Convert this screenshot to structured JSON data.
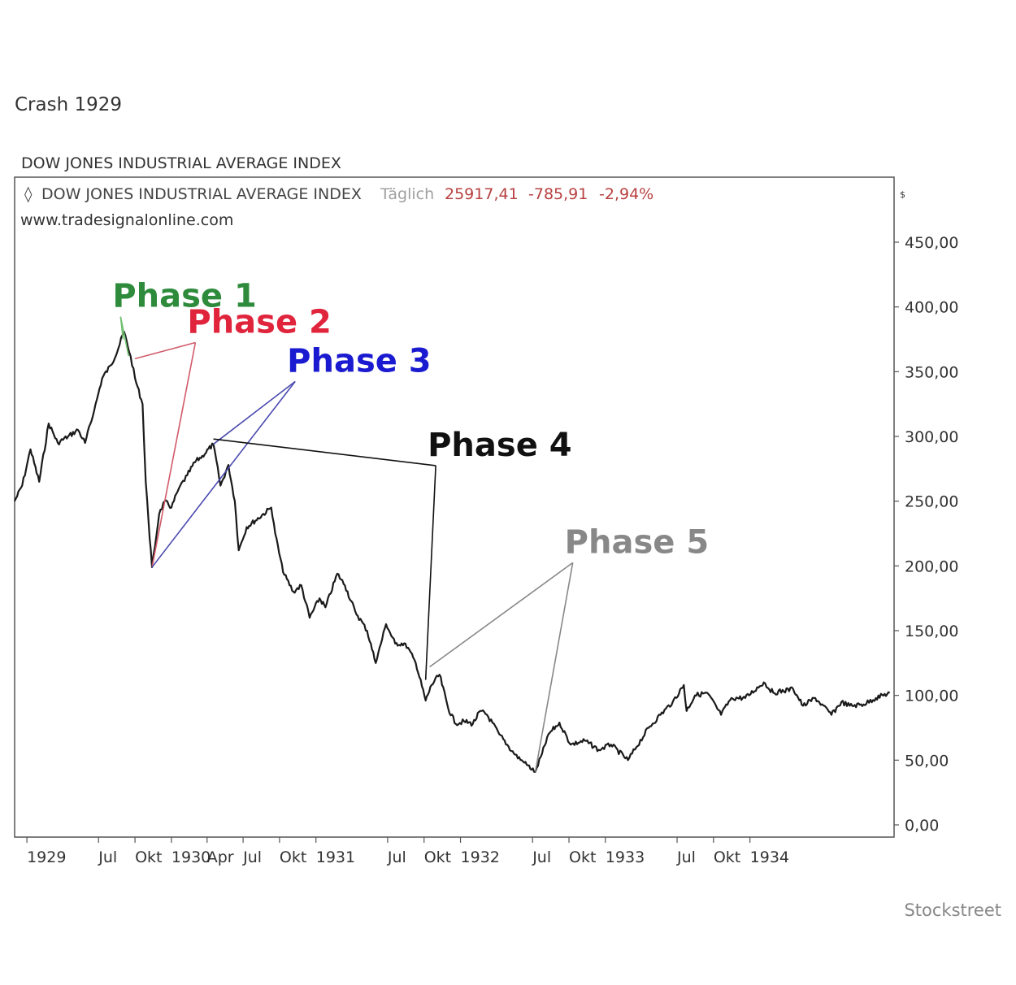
{
  "page": {
    "title": "Crash 1929",
    "credit": "Stockstreet"
  },
  "chart_data": {
    "type": "line",
    "chart_title": "DOW JONES INDUSTRIAL AVERAGE INDEX",
    "legend": {
      "series_name": "DOW JONES INDUSTRIAL AVERAGE INDEX",
      "frequency": "Täglich",
      "last": "25917,41",
      "change": "-785,91",
      "change_pct": "-2,94%"
    },
    "source": "www.tradesignalonline.com",
    "unit_label": "$",
    "ylim": [
      0,
      450
    ],
    "y_ticks": [
      {
        "value": 450,
        "label": "450,00"
      },
      {
        "value": 400,
        "label": "400,00"
      },
      {
        "value": 350,
        "label": "350,00"
      },
      {
        "value": 300,
        "label": "300,00"
      },
      {
        "value": 250,
        "label": "250,00"
      },
      {
        "value": 200,
        "label": "200,00"
      },
      {
        "value": 150,
        "label": "150,00"
      },
      {
        "value": 100,
        "label": "100,00"
      },
      {
        "value": 50,
        "label": "50,00"
      },
      {
        "value": 0,
        "label": "0,00"
      }
    ],
    "x_range": [
      "1928-12-01",
      "1934-12-31"
    ],
    "x_ticks": [
      {
        "date": "1929-01-01",
        "label": "1929"
      },
      {
        "date": "1929-07-01",
        "label": "Jul"
      },
      {
        "date": "1929-10-01",
        "label": "Okt"
      },
      {
        "date": "1930-01-01",
        "label": "1930"
      },
      {
        "date": "1930-04-01",
        "label": "Apr"
      },
      {
        "date": "1930-07-01",
        "label": "Jul"
      },
      {
        "date": "1930-10-01",
        "label": "Okt"
      },
      {
        "date": "1931-01-01",
        "label": "1931"
      },
      {
        "date": "1931-07-01",
        "label": "Jul"
      },
      {
        "date": "1931-10-01",
        "label": "Okt"
      },
      {
        "date": "1932-01-01",
        "label": "1932"
      },
      {
        "date": "1932-07-01",
        "label": "Jul"
      },
      {
        "date": "1932-10-01",
        "label": "Okt"
      },
      {
        "date": "1933-01-01",
        "label": "1933"
      },
      {
        "date": "1933-07-01",
        "label": "Jul"
      },
      {
        "date": "1933-10-01",
        "label": "Okt"
      },
      {
        "date": "1934-01-01",
        "label": "1934"
      }
    ],
    "series": [
      {
        "color": "#1a1a1a",
        "points": [
          [
            "1928-12-01",
            250
          ],
          [
            "1928-12-20",
            262
          ],
          [
            "1929-01-10",
            290
          ],
          [
            "1929-02-01",
            265
          ],
          [
            "1929-02-25",
            310
          ],
          [
            "1929-03-20",
            295
          ],
          [
            "1929-04-15",
            300
          ],
          [
            "1929-05-10",
            305
          ],
          [
            "1929-05-28",
            295
          ],
          [
            "1929-06-20",
            320
          ],
          [
            "1929-07-10",
            345
          ],
          [
            "1929-08-01",
            355
          ],
          [
            "1929-08-20",
            368
          ],
          [
            "1929-09-03",
            381
          ],
          [
            "1929-09-20",
            362
          ],
          [
            "1929-10-01",
            345
          ],
          [
            "1929-10-20",
            325
          ],
          [
            "1929-10-28",
            265
          ],
          [
            "1929-11-04",
            235
          ],
          [
            "1929-11-13",
            199
          ],
          [
            "1929-12-01",
            240
          ],
          [
            "1929-12-15",
            250
          ],
          [
            "1930-01-01",
            245
          ],
          [
            "1930-01-20",
            260
          ],
          [
            "1930-02-10",
            270
          ],
          [
            "1930-03-01",
            280
          ],
          [
            "1930-03-20",
            285
          ],
          [
            "1930-04-17",
            294
          ],
          [
            "1930-05-05",
            262
          ],
          [
            "1930-05-25",
            278
          ],
          [
            "1930-06-10",
            250
          ],
          [
            "1930-06-20",
            212
          ],
          [
            "1930-07-10",
            230
          ],
          [
            "1930-08-01",
            235
          ],
          [
            "1930-09-10",
            245
          ],
          [
            "1930-09-20",
            225
          ],
          [
            "1930-10-10",
            195
          ],
          [
            "1930-11-05",
            180
          ],
          [
            "1930-11-25",
            185
          ],
          [
            "1930-12-16",
            160
          ],
          [
            "1931-01-10",
            175
          ],
          [
            "1931-01-25",
            168
          ],
          [
            "1931-02-24",
            194
          ],
          [
            "1931-03-15",
            185
          ],
          [
            "1931-04-10",
            165
          ],
          [
            "1931-05-10",
            150
          ],
          [
            "1931-06-01",
            125
          ],
          [
            "1931-06-27",
            155
          ],
          [
            "1931-07-20",
            140
          ],
          [
            "1931-08-15",
            140
          ],
          [
            "1931-09-10",
            125
          ],
          [
            "1931-10-05",
            96
          ],
          [
            "1931-10-20",
            108
          ],
          [
            "1931-11-09",
            116
          ],
          [
            "1931-12-01",
            90
          ],
          [
            "1931-12-20",
            78
          ],
          [
            "1932-01-10",
            80
          ],
          [
            "1932-02-01",
            78
          ],
          [
            "1932-02-20",
            88
          ],
          [
            "1932-03-08",
            85
          ],
          [
            "1932-04-08",
            70
          ],
          [
            "1932-05-15",
            55
          ],
          [
            "1932-06-10",
            48
          ],
          [
            "1932-07-08",
            41
          ],
          [
            "1932-07-25",
            55
          ],
          [
            "1932-08-10",
            70
          ],
          [
            "1932-09-07",
            79
          ],
          [
            "1932-10-05",
            62
          ],
          [
            "1932-11-10",
            65
          ],
          [
            "1932-12-15",
            58
          ],
          [
            "1933-01-15",
            62
          ],
          [
            "1933-02-27",
            50
          ],
          [
            "1933-03-20",
            60
          ],
          [
            "1933-04-20",
            75
          ],
          [
            "1933-05-20",
            85
          ],
          [
            "1933-06-20",
            95
          ],
          [
            "1933-07-18",
            108
          ],
          [
            "1933-07-25",
            88
          ],
          [
            "1933-08-15",
            100
          ],
          [
            "1933-09-15",
            102
          ],
          [
            "1933-10-20",
            85
          ],
          [
            "1933-11-15",
            98
          ],
          [
            "1933-12-20",
            98
          ],
          [
            "1934-02-05",
            110
          ],
          [
            "1934-03-01",
            102
          ],
          [
            "1934-04-20",
            105
          ],
          [
            "1934-05-15",
            92
          ],
          [
            "1934-06-15",
            98
          ],
          [
            "1934-07-26",
            85
          ],
          [
            "1934-08-20",
            95
          ],
          [
            "1934-09-10",
            92
          ],
          [
            "1934-10-15",
            93
          ],
          [
            "1934-11-15",
            98
          ],
          [
            "1934-12-20",
            102
          ]
        ]
      }
    ],
    "annotations": [
      {
        "text": "Phase 1",
        "color": "#2e8b3c",
        "line_color": "#6fbf6f",
        "anchor": [
          "1929-08-05",
          400
        ],
        "targets": [
          [
            "1929-09-01",
            375
          ],
          [
            "1929-09-15",
            362
          ]
        ]
      },
      {
        "text": "Phase 2",
        "color": "#e0243c",
        "line_color": "#d25a6a",
        "anchor": [
          "1930-02-10",
          380
        ],
        "targets": [
          [
            "1929-10-01",
            360
          ],
          [
            "1929-11-13",
            199
          ]
        ]
      },
      {
        "text": "Phase 3",
        "color": "#1a1ad0",
        "line_color": "#4a4ab0",
        "anchor": [
          "1930-10-20",
          350
        ],
        "targets": [
          [
            "1930-04-17",
            294
          ],
          [
            "1929-11-13",
            199
          ]
        ]
      },
      {
        "text": "Phase 4",
        "color": "#111111",
        "line_color": "#111111",
        "anchor": [
          "1931-10-10",
          285
        ],
        "targets": [
          [
            "1930-04-17",
            298
          ],
          [
            "1931-10-05",
            112
          ]
        ]
      },
      {
        "text": "Phase 5",
        "color": "#888888",
        "line_color": "#888888",
        "anchor": [
          "1932-09-20",
          210
        ],
        "targets": [
          [
            "1931-10-15",
            122
          ],
          [
            "1932-07-08",
            41
          ]
        ]
      }
    ]
  }
}
